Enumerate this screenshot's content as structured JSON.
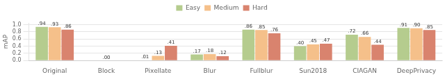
{
  "chart_data": {
    "type": "bar",
    "categories": [
      "Original",
      "Block",
      "Pixellate",
      "Blur",
      "Fullblur",
      "Sun2018",
      "CIAGAN",
      "DeepPrivacy"
    ],
    "series": [
      {
        "name": "Easy",
        "color": "#b5cc8e",
        "values": [
          0.94,
          0.0,
          0.01,
          0.17,
          0.86,
          0.4,
          0.72,
          0.91
        ],
        "value_labels": [
          ".94",
          null,
          ".01",
          ".17",
          ".86",
          ".40",
          ".72",
          ".91"
        ]
      },
      {
        "name": "Medium",
        "color": "#f5c08a",
        "values": [
          0.93,
          0.0,
          0.13,
          0.18,
          0.85,
          0.45,
          0.66,
          0.9
        ],
        "value_labels": [
          ".93",
          ".00",
          ".13",
          ".18",
          ".85",
          ".45",
          ".66",
          ".90"
        ]
      },
      {
        "name": "Hard",
        "color": "#d9836e",
        "values": [
          0.86,
          0.0,
          0.41,
          0.12,
          0.76,
          0.47,
          0.44,
          0.85
        ],
        "value_labels": [
          ".86",
          null,
          ".41",
          ".12",
          ".76",
          ".47",
          ".44",
          ".85"
        ]
      }
    ],
    "ylabel": "mAP",
    "ylim": [
      0.0,
      1.05
    ],
    "yticks": [
      {
        "value": 0,
        "label": "0.0"
      },
      0.2,
      0.4,
      0.6,
      0.8,
      {
        "value": 1,
        "label": "1.0"
      }
    ],
    "grid": true,
    "legend": "top",
    "data_labels": true
  }
}
